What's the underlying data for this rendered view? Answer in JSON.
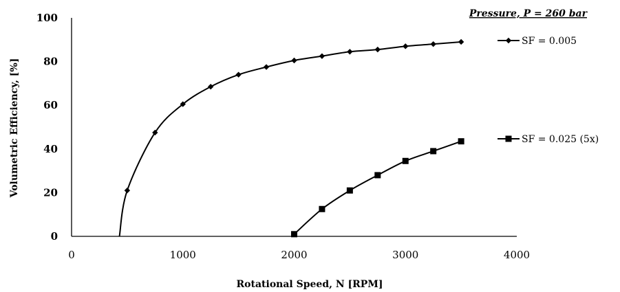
{
  "chart_data": {
    "type": "line",
    "title": "Pressure, P = 260 bar",
    "xlabel": "Rotational Speed, N [RPM]",
    "ylabel": "Volumetric Efficiency, [%]",
    "xlim": [
      0,
      4000
    ],
    "ylim": [
      0,
      100
    ],
    "x_ticks": [
      "0",
      "1000",
      "2000",
      "3000",
      "4000"
    ],
    "y_ticks": [
      "0",
      "20",
      "40",
      "60",
      "80",
      "100"
    ],
    "grid": false,
    "legend_position": "right",
    "series": [
      {
        "name": "SF = 0.005",
        "marker": "diamond",
        "curve_start": [
          430,
          0
        ],
        "x": [
          500,
          750,
          1000,
          1250,
          1500,
          1750,
          2000,
          2250,
          2500,
          2750,
          3000,
          3250,
          3500
        ],
        "y": [
          21,
          47.5,
          60.5,
          68.5,
          74,
          77.5,
          80.5,
          82.5,
          84.5,
          85.5,
          87,
          88,
          89
        ]
      },
      {
        "name": "SF = 0.025 (5x)",
        "marker": "square",
        "x": [
          2000,
          2250,
          2500,
          2750,
          3000,
          3250,
          3500
        ],
        "y": [
          1,
          12.5,
          21,
          28,
          34.5,
          39,
          43.5
        ]
      }
    ]
  }
}
